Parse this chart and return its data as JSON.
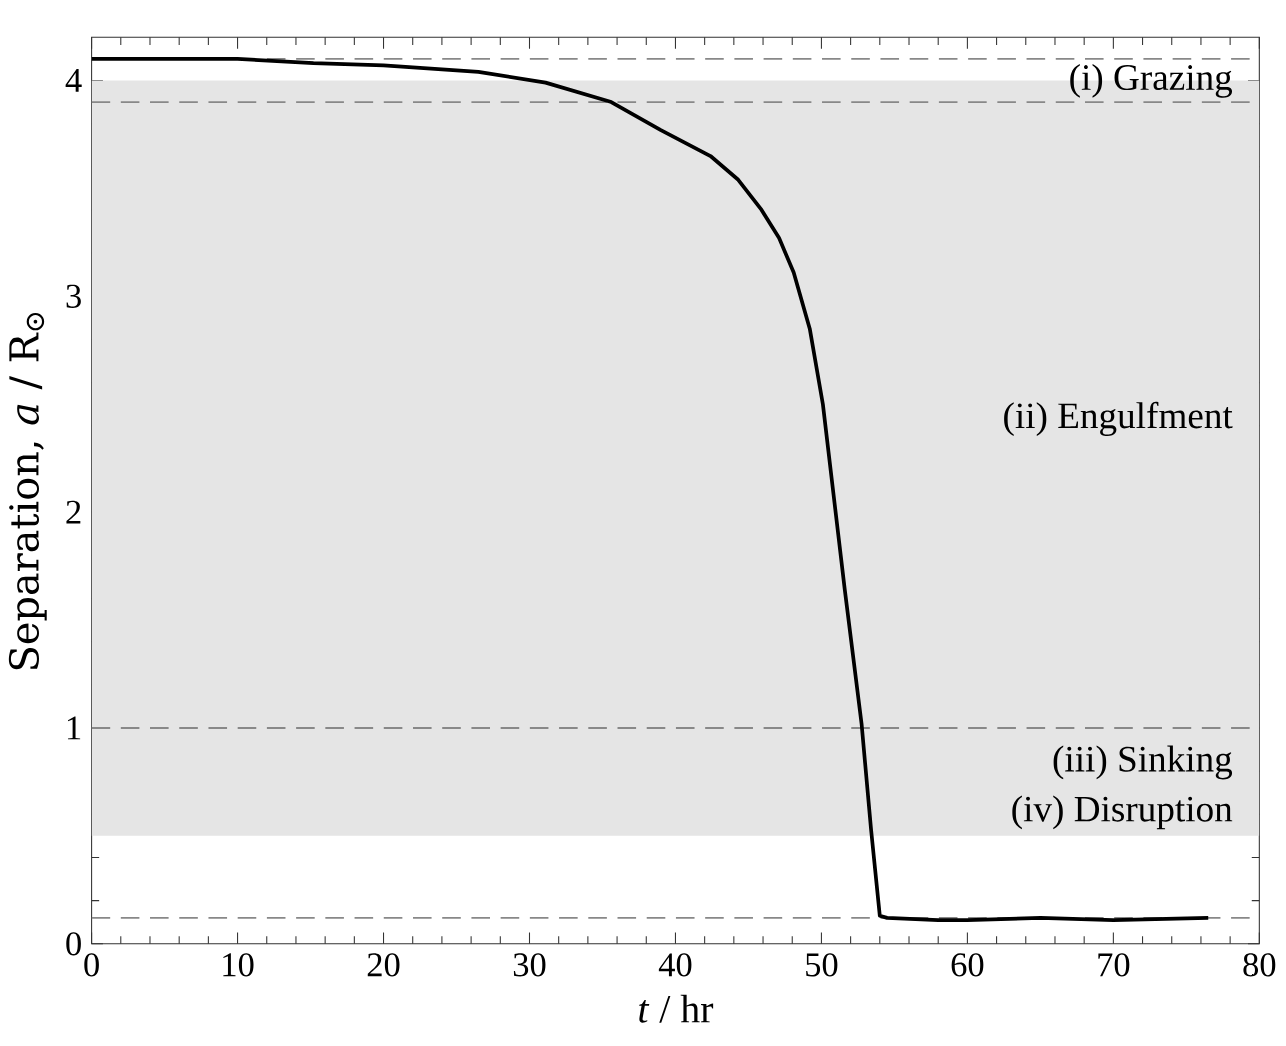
{
  "chart_data": {
    "type": "line",
    "xlabel": "*t* / hr",
    "ylabel": "Separation, *a* / R$_{⊙}$",
    "x": [
      0,
      5,
      10,
      15.2,
      20,
      26.5,
      31.1,
      35.6,
      39,
      42.4,
      44.3,
      45.9,
      47.1,
      48.1,
      49.2,
      50.1,
      51.6,
      52.75,
      53.4,
      54.0,
      54.5,
      58,
      60,
      65,
      70,
      76.5
    ],
    "series": [
      {
        "color": "#000000",
        "values": [
          4.1,
          4.1,
          4.1,
          4.08,
          4.07,
          4.04,
          3.99,
          3.9,
          3.77,
          3.65,
          3.54,
          3.4,
          3.27,
          3.11,
          2.85,
          2.5,
          1.64,
          1.02,
          0.53,
          0.13,
          0.12,
          0.11,
          0.11,
          0.12,
          0.11,
          0.12
        ]
      }
    ],
    "xlim": [
      0,
      80
    ],
    "ylim": [
      0,
      4.2
    ],
    "xticks": [
      0,
      10,
      20,
      30,
      40,
      50,
      60,
      70,
      80
    ],
    "yticks": [
      0,
      1,
      2,
      3,
      4
    ],
    "bands": [
      {
        "axis": "y",
        "from": 0.5,
        "to": 4.0,
        "color": "#e5e5e5"
      }
    ],
    "ref_lines": [
      {
        "axis": "y",
        "value": 4.1,
        "color": "#888888",
        "line_style": "dashed"
      },
      {
        "axis": "y",
        "value": 3.9,
        "color": "#888888",
        "line_style": "dashed"
      },
      {
        "axis": "y",
        "value": 1.0,
        "color": "#888888",
        "line_style": "dashed"
      },
      {
        "axis": "y",
        "value": 0.12,
        "color": "#888888",
        "line_style": "dashed"
      }
    ],
    "annotations": [
      "(i) Grazing",
      "(ii) Engulfment",
      "(iii) Sinking",
      "(iv) Disruption"
    ],
    "line_style": "solid",
    "marker": "none",
    "grid": false
  }
}
